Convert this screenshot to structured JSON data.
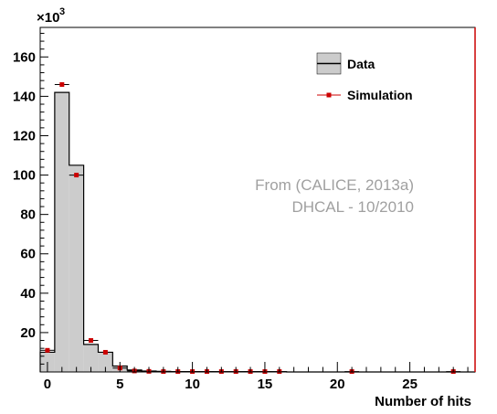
{
  "chart_data": {
    "type": "bar",
    "xlabel": "Number of hits",
    "ylabel": "",
    "y_multiplier_label": "×10",
    "y_multiplier_exponent": "3",
    "xlim": [
      -0.5,
      29.5
    ],
    "ylim": [
      0,
      175
    ],
    "x_ticks": [
      0,
      5,
      10,
      15,
      20,
      25
    ],
    "y_ticks": [
      20,
      40,
      60,
      80,
      100,
      120,
      140,
      160
    ],
    "grid": false,
    "legend_position": "top-right",
    "annotations": [
      "From (CALICE, 2013a)",
      "DHCAL - 10/2010"
    ],
    "series": [
      {
        "name": "Data",
        "kind": "histogram",
        "color": "#cccccc",
        "x": [
          0,
          1,
          2,
          3,
          4,
          5,
          6,
          7,
          8,
          9,
          10,
          11,
          12,
          13,
          14,
          15,
          16,
          17,
          18,
          19,
          20,
          21,
          22,
          23,
          24,
          25,
          26,
          27,
          28,
          29
        ],
        "values": [
          10,
          142,
          105,
          14,
          10,
          3,
          1,
          0.5,
          0.3,
          0.2,
          0.2,
          0.1,
          0.1,
          0.1,
          0.1,
          0.1,
          0.1,
          0,
          0,
          0,
          0,
          0,
          0,
          0,
          0,
          0,
          0,
          0,
          0,
          0
        ]
      },
      {
        "name": "Simulation",
        "kind": "markers",
        "color": "#cc0000",
        "x": [
          0,
          1,
          2,
          3,
          4,
          5,
          6,
          7,
          8,
          9,
          10,
          11,
          12,
          13,
          14,
          15,
          16,
          21,
          28
        ],
        "values": [
          11,
          146,
          100,
          16,
          10,
          2,
          0.5,
          0.3,
          0.2,
          0.2,
          0.2,
          0.2,
          0.2,
          0.2,
          0.2,
          0.2,
          0.2,
          0.2,
          0.2
        ]
      }
    ]
  }
}
